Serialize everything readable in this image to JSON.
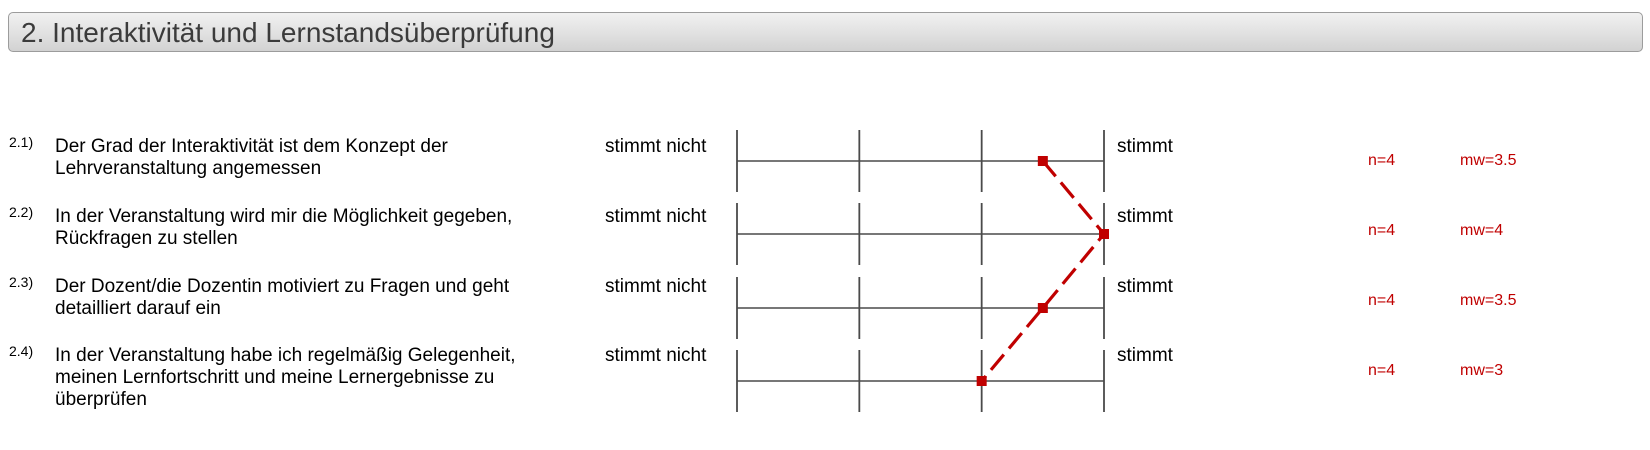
{
  "section": {
    "title": "2. Interaktivität und Lernstandsüberprüfung"
  },
  "scale": {
    "left_label": "stimmt nicht",
    "right_label": "stimmt",
    "min": 1,
    "max": 4
  },
  "questions": [
    {
      "number": "2.1)",
      "text": "Der Grad der Interaktivität ist dem Konzept der Lehrveranstaltung angemessen",
      "left_label": "stimmt nicht",
      "right_label": "stimmt",
      "n_label": "n=4",
      "mw_label": "mw=3.5"
    },
    {
      "number": "2.2)",
      "text": "In der Veranstaltung wird mir die Möglichkeit gegeben, Rückfragen zu stellen",
      "left_label": "stimmt nicht",
      "right_label": "stimmt",
      "n_label": "n=4",
      "mw_label": "mw=4"
    },
    {
      "number": "2.3)",
      "text": "Der Dozent/die Dozentin motiviert zu Fragen und geht detailliert darauf ein",
      "left_label": "stimmt nicht",
      "right_label": "stimmt",
      "n_label": "n=4",
      "mw_label": "mw=3.5"
    },
    {
      "number": "2.4)",
      "text": "In der Veranstaltung habe ich regelmäßig Gelegenheit, meinen Lernfortschritt und meine Lernergebnisse zu überprüfen",
      "left_label": "stimmt nicht",
      "right_label": "stimmt",
      "n_label": "n=4",
      "mw_label": "mw=3"
    }
  ],
  "chart_data": {
    "type": "line",
    "categories": [
      "2.1)",
      "2.2)",
      "2.3)",
      "2.4)"
    ],
    "series": [
      {
        "values": [
          3.5,
          4,
          3.5,
          3
        ],
        "color": "#c00000"
      }
    ],
    "xlim": [
      1,
      4
    ],
    "grid": true,
    "line_style": "dashed",
    "marker": "square"
  }
}
